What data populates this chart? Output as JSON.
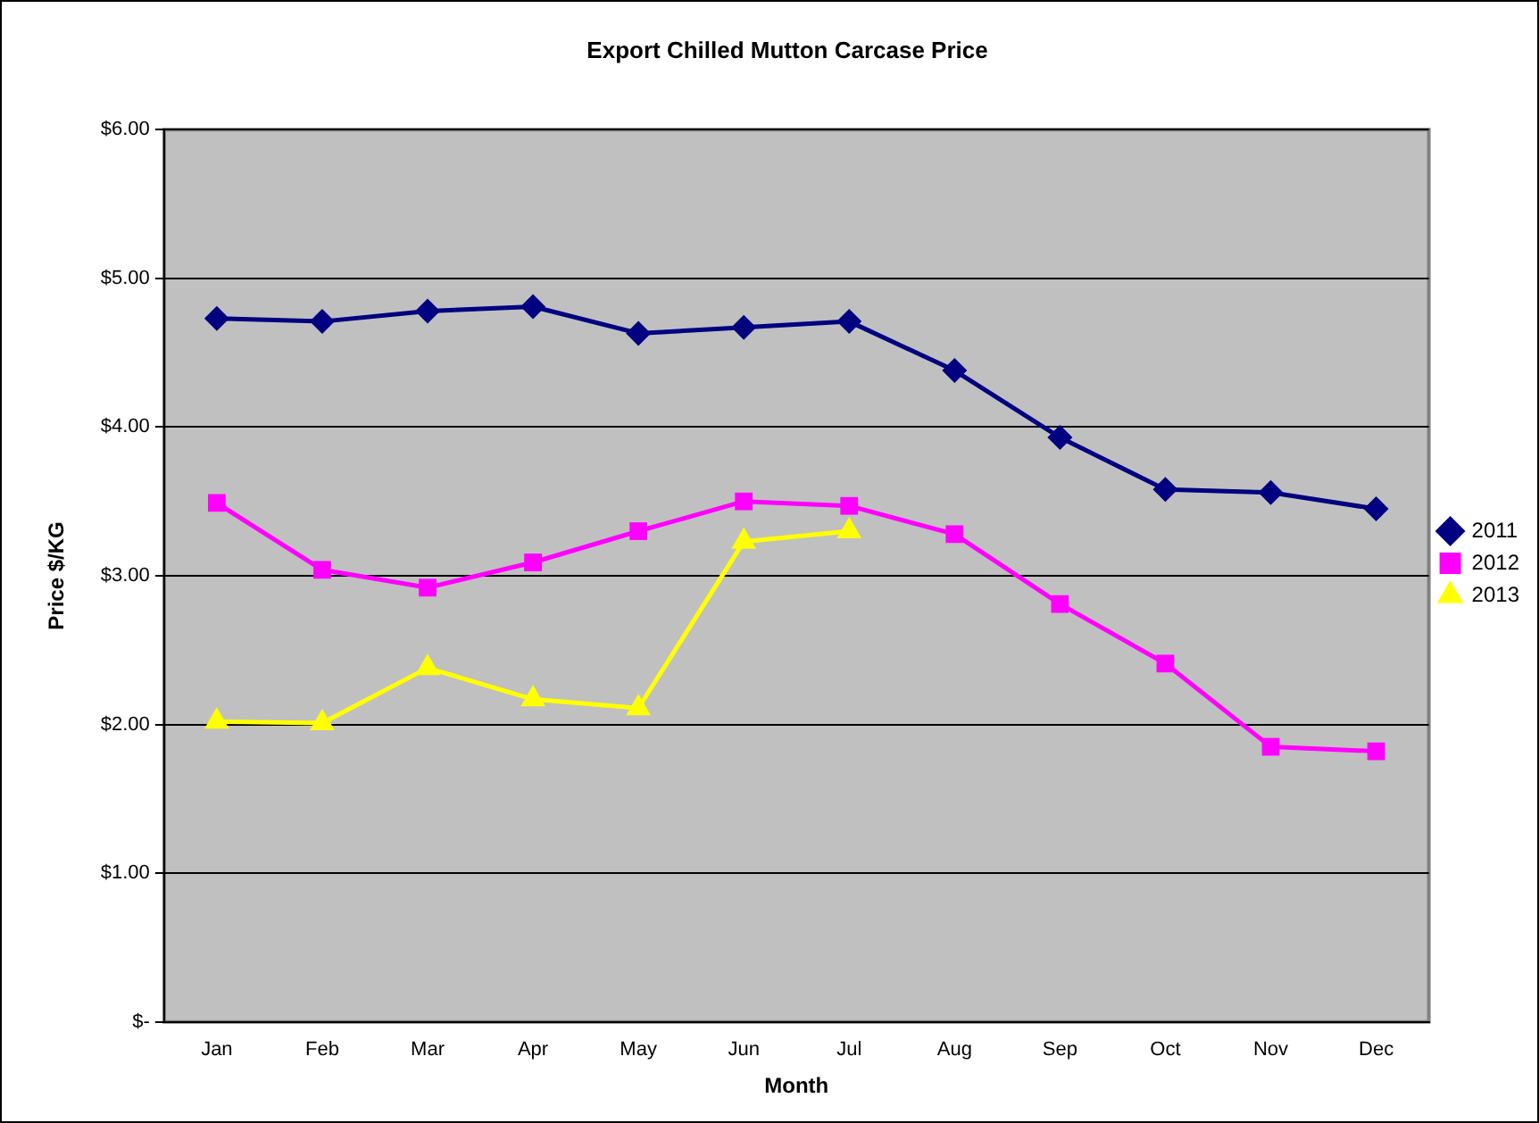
{
  "chart_data": {
    "type": "line",
    "title": "Export Chilled Mutton Carcase Price",
    "xlabel": "Month",
    "ylabel": "Price $/KG",
    "categories": [
      "Jan",
      "Feb",
      "Mar",
      "Apr",
      "May",
      "Jun",
      "Jul",
      "Aug",
      "Sep",
      "Oct",
      "Nov",
      "Dec"
    ],
    "series": [
      {
        "name": "2011",
        "color": "#000080",
        "marker": "diamond",
        "values": [
          4.73,
          4.71,
          4.78,
          4.81,
          4.63,
          4.67,
          4.71,
          4.38,
          3.93,
          3.58,
          3.56,
          3.45
        ]
      },
      {
        "name": "2012",
        "color": "#ff00ff",
        "marker": "square",
        "values": [
          3.49,
          3.04,
          2.92,
          3.09,
          3.3,
          3.5,
          3.47,
          3.28,
          2.81,
          2.41,
          1.85,
          1.82
        ]
      },
      {
        "name": "2013",
        "color": "#ffff00",
        "marker": "triangle",
        "values": [
          2.02,
          2.01,
          2.38,
          2.17,
          2.11,
          3.23,
          3.3,
          null,
          null,
          null,
          null,
          null
        ]
      }
    ],
    "ylim": [
      0,
      6
    ],
    "yticks": [
      {
        "value": 0,
        "label": "$-"
      },
      {
        "value": 1,
        "label": "$1.00"
      },
      {
        "value": 2,
        "label": "$2.00"
      },
      {
        "value": 3,
        "label": "$3.00"
      },
      {
        "value": 4,
        "label": "$4.00"
      },
      {
        "value": 5,
        "label": "$5.00"
      },
      {
        "value": 6,
        "label": "$6.00"
      }
    ],
    "grid": "y",
    "legend": "right",
    "line_style": "solid"
  }
}
